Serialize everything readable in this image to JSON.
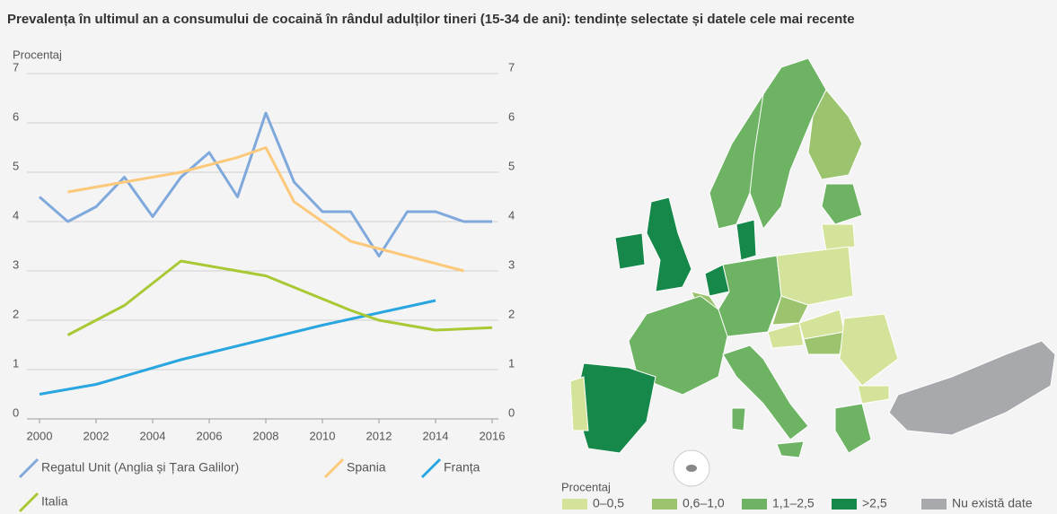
{
  "chart_data": {
    "type": "line",
    "title": "Prevalența în ultimul an a consumului de cocaină în rândul adulților tineri (15-34 de ani): tendințe selectate și datele cele mai recente",
    "y_label": "Procentaj",
    "xlim": [
      2000,
      2016
    ],
    "xticks": [
      2000,
      2002,
      2004,
      2006,
      2008,
      2010,
      2012,
      2014,
      2016
    ],
    "ylim": [
      0,
      7
    ],
    "yticks": [
      0,
      1,
      2,
      3,
      4,
      5,
      6,
      7
    ],
    "grid": true,
    "series": [
      {
        "name": "Regatul Unit (Anglia și Țara Galilor)",
        "color": "#7fa9dc",
        "x": [
          2000,
          2001,
          2002,
          2003,
          2004,
          2005,
          2006,
          2007,
          2008,
          2009,
          2010,
          2011,
          2012,
          2013,
          2014,
          2015,
          2016
        ],
        "values": [
          4.5,
          4.0,
          4.3,
          4.9,
          4.1,
          4.9,
          5.4,
          4.5,
          6.2,
          4.8,
          4.2,
          4.2,
          3.3,
          4.2,
          4.2,
          4.0,
          4.0
        ]
      },
      {
        "name": "Spania",
        "color": "#fcc97a",
        "x": [
          2001,
          2003,
          2005,
          2007,
          2008,
          2009,
          2011,
          2013,
          2015
        ],
        "values": [
          4.6,
          4.8,
          5.0,
          5.3,
          5.5,
          4.4,
          3.6,
          3.3,
          3.0
        ]
      },
      {
        "name": "Franța",
        "color": "#29a6e0",
        "x": [
          2000,
          2002,
          2005,
          2010,
          2014
        ],
        "values": [
          0.5,
          0.7,
          1.2,
          1.9,
          2.4
        ]
      },
      {
        "name": "Italia",
        "color": "#a8c934",
        "x": [
          2001,
          2003,
          2005,
          2008,
          2011,
          2012,
          2014,
          2016
        ],
        "values": [
          1.7,
          2.3,
          3.2,
          2.9,
          2.2,
          2.0,
          1.8,
          1.85
        ]
      }
    ]
  },
  "map": {
    "legend_title": "Procentaj",
    "classes": [
      {
        "label": "0–0,5",
        "color": "#d4e39a"
      },
      {
        "label": "0,6–1,0",
        "color": "#9cc46e"
      },
      {
        "label": "1,1–2,5",
        "color": "#6db363"
      },
      {
        "label": ">2,5",
        "color": "#16894a"
      },
      {
        "label": "Nu există date",
        "color": "#a7a9ac"
      }
    ]
  }
}
